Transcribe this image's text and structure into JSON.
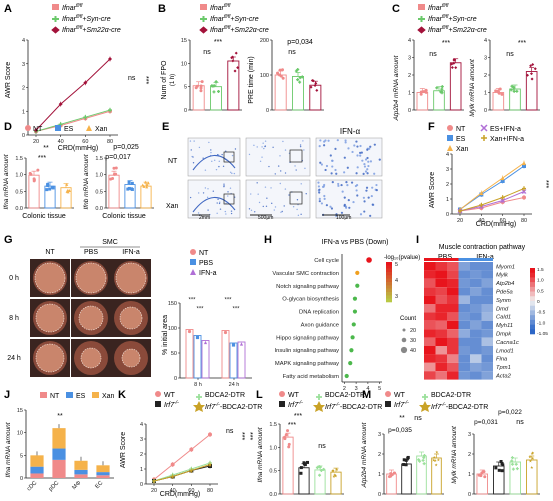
{
  "colors": {
    "pink": "#f08a8a",
    "green": "#6bc96b",
    "darkred": "#a3123a",
    "orange": "#f5b24a",
    "blue": "#4a90e2",
    "purple": "#b06fd6",
    "black": "#222222",
    "gold": "#c9a227",
    "lightgreen": "#9be09b",
    "heat_high": "#e8141c",
    "heat_low": "#2c66c7",
    "heat_mid": "#f2f2f2"
  },
  "panels": {
    "A": {
      "label": "A",
      "legend": [
        "Ifnar",
        "Ifnar",
        "Ifnar"
      ],
      "legend_sup": [
        "fl/fl",
        "fl/fl",
        "fl/fl"
      ],
      "legend_suffix": [
        "",
        "+Syn-cre",
        "+Sm22α-cre"
      ],
      "ylabel": "AWR Score",
      "xlabel": "CRD(mmHg)",
      "xticks": [
        "20",
        "40",
        "60",
        "80"
      ],
      "yticks": [
        "0",
        "1",
        "2",
        "3",
        "4"
      ],
      "ns": "ns",
      "stars": "***",
      "chart_data": {
        "type": "line",
        "x": [
          20,
          40,
          60,
          80
        ],
        "ylim": [
          0,
          4
        ],
        "series": [
          {
            "values": [
              0.15,
              0.4,
              0.7,
              1.0
            ]
          },
          {
            "values": [
              0.15,
              0.45,
              0.75,
              1.05
            ]
          },
          {
            "values": [
              0.2,
              1.3,
              2.2,
              3.2
            ]
          }
        ]
      }
    },
    "B": {
      "label": "B",
      "ylabel1": "Num of FPO",
      "ylabel1b": "(1 h)",
      "ylabel2": "PRE time (min)",
      "stars": "***",
      "ns": "ns",
      "p": "p=0,034",
      "yticks1": [
        "0",
        "5",
        "10",
        "15"
      ],
      "yticks2": [
        "0",
        "100",
        "200"
      ],
      "chart_data": {
        "type": "bar",
        "panels": [
          {
            "ylim": [
              0,
              15
            ],
            "values": [
              5.2,
              5.0,
              10.5
            ]
          },
          {
            "ylim": [
              0,
              240
            ],
            "values": [
              120,
              115,
              85
            ]
          }
        ]
      }
    },
    "C": {
      "label": "C",
      "ylabel1": "Atp2b4 mRNA amount",
      "ylabel2": "Mylk mRNA amount",
      "stars1": "***",
      "ns1": "ns",
      "stars2": "***",
      "ns2": "ns",
      "yticks1": [
        "0",
        "1",
        "2",
        "3",
        "4"
      ],
      "yticks2": [
        "0",
        "1",
        "2",
        "3",
        "4"
      ],
      "chart_data": {
        "type": "bar",
        "panels": [
          {
            "ylim": [
              0,
              4
            ],
            "values": [
              1.0,
              1.1,
              2.7
            ]
          },
          {
            "ylim": [
              0,
              4
            ],
            "values": [
              1.0,
              1.2,
              2.2
            ]
          }
        ]
      }
    },
    "D": {
      "label": "D",
      "legend": [
        "NT",
        "ES",
        "Xan"
      ],
      "ylabel1": "Ifna mRNA amount",
      "ylabel2": "Ifnb mRNA amount",
      "xlabel": "Colonic tissue",
      "stars_a": "**",
      "stars_b": "***",
      "p1": "p=0,025",
      "p2": "p=0,017",
      "yticks1": [
        "0.0",
        "0.5",
        "1.0",
        "1.5"
      ],
      "yticks2": [
        "0.0",
        "0.5",
        "1.0",
        "1.5"
      ],
      "chart_data": {
        "type": "bar",
        "categories": [
          "NT",
          "ES",
          "Xan"
        ],
        "panels": [
          {
            "ylim": [
              0,
              1.6
            ],
            "values": [
              1.05,
              0.7,
              0.65
            ]
          },
          {
            "ylim": [
              0,
              1.6
            ],
            "values": [
              1.05,
              0.75,
              0.7
            ]
          }
        ]
      }
    },
    "E": {
      "label": "E",
      "col_title": "IFN-α",
      "rows": [
        "NT",
        "Xan"
      ],
      "scale1": "2mm",
      "scale2": "500μm",
      "scale3": "100μm"
    },
    "F": {
      "label": "F",
      "legend": [
        "NT",
        "ES",
        "Xan",
        "ES+IFN-a",
        "Xan+IFN-a"
      ],
      "ylabel": "AWR Score",
      "xlabel": "CRD(mmHg)",
      "stars": "***",
      "xticks": [
        "20",
        "40",
        "60",
        "80"
      ],
      "yticks": [
        "0",
        "1",
        "2",
        "3",
        "4"
      ],
      "chart_data": {
        "type": "line",
        "x": [
          20,
          40,
          60,
          80
        ],
        "ylim": [
          0,
          4
        ],
        "series": [
          {
            "values": [
              0.2,
              0.4,
              0.8,
              1.1
            ]
          },
          {
            "values": [
              0.3,
              1.3,
              2.2,
              3.2
            ]
          },
          {
            "values": [
              0.3,
              1.4,
              2.4,
              3.4
            ]
          },
          {
            "values": [
              0.2,
              0.5,
              0.9,
              1.5
            ]
          },
          {
            "values": [
              0.2,
              0.6,
              1.1,
              1.7
            ]
          }
        ]
      }
    },
    "G": {
      "label": "G",
      "smc": "SMC",
      "cols": [
        "NT",
        "PBS",
        "IFN-a"
      ],
      "rows": [
        "0 h",
        "8 h",
        "24 h"
      ],
      "legend": [
        "NT",
        "PBS",
        "IFN-a"
      ],
      "ylabel": "% initial area",
      "stars": [
        "***",
        "***",
        "***",
        "***"
      ],
      "xticks": [
        "8 h",
        "24 h"
      ],
      "yticks": [
        "0",
        "50",
        "100",
        "150"
      ],
      "chart_data": {
        "type": "bar",
        "categories": [
          "8 h",
          "24 h"
        ],
        "ylim": [
          0,
          150
        ],
        "series": [
          {
            "name": "NT",
            "values": [
              97,
              95
            ]
          },
          {
            "name": "PBS",
            "values": [
              85,
              70
            ]
          },
          {
            "name": "IFN-a",
            "values": [
              75,
              72
            ]
          }
        ]
      }
    },
    "H": {
      "label": "H",
      "title": "IFN-a vs PBS (Down)",
      "color_title": "-log₁₀(pvalue)",
      "color_ticks": [
        "5",
        "4",
        "3"
      ],
      "size_title": "Count",
      "size_ticks": [
        "20",
        "30",
        "40"
      ],
      "xticks": [
        "2",
        "3",
        "4",
        "5"
      ],
      "chart_data": {
        "type": "scatter",
        "categories": [
          "Cell cycle",
          "Vascular SMC contraction",
          "Notch signaling pathway",
          "O-glycan biosynthesis",
          "DNA replication",
          "Axon guidance",
          "Hippo signaling pathway",
          "Insulin signaling pathway",
          "MAPK signaling pathway",
          "Fatty acid metabolism"
        ],
        "x": [
          4.1,
          3.1,
          3.1,
          2.9,
          2.9,
          2.8,
          2.7,
          2.6,
          2.5,
          2.2
        ],
        "xlim": [
          1.8,
          5.2
        ]
      }
    },
    "I": {
      "label": "I",
      "title": "Muscle contraction pathway",
      "groups": [
        "PBS",
        "IFN-a"
      ],
      "genes": [
        "Myom1",
        "Mylk",
        "Atp2b4",
        "Pde5a",
        "Synm",
        "Dmd",
        "Cald1",
        "Myh11",
        "Dmpk",
        "Cacna1c",
        "Lmod1",
        "Flna",
        "Tpm1",
        "Acta2"
      ],
      "colorbar_ticks": [
        "1.5",
        "1.0",
        "0.5",
        "0",
        "-0.5",
        "-1.0",
        "-1.05"
      ],
      "chart_data": {
        "type": "heatmap",
        "rows": 14,
        "cols": 6,
        "values": [
          [
            1.4,
            1.2,
            1.0,
            -0.8,
            -1.0,
            -1.0
          ],
          [
            1.3,
            1.4,
            1.1,
            -1.0,
            -0.9,
            -1.0
          ],
          [
            1.0,
            1.4,
            1.3,
            -0.9,
            -1.0,
            -0.8
          ],
          [
            1.2,
            1.1,
            1.4,
            -1.0,
            -0.8,
            -1.0
          ],
          [
            1.4,
            1.0,
            1.2,
            -0.6,
            -1.0,
            -1.0
          ],
          [
            0.8,
            1.3,
            1.3,
            -1.0,
            -0.9,
            -0.7
          ],
          [
            1.2,
            1.3,
            1.0,
            -0.9,
            -1.0,
            -0.6
          ],
          [
            1.0,
            0.9,
            1.4,
            -1.0,
            -0.8,
            -1.0
          ],
          [
            1.3,
            1.2,
            0.9,
            -0.7,
            -1.0,
            -0.9
          ],
          [
            0.9,
            1.4,
            1.2,
            -1.0,
            -1.0,
            -0.5
          ],
          [
            1.4,
            0.6,
            1.2,
            -0.9,
            -1.0,
            -0.9
          ],
          [
            1.3,
            1.2,
            0.7,
            -1.0,
            -0.4,
            -1.0
          ],
          [
            0.6,
            1.3,
            1.0,
            -1.0,
            -0.8,
            -0.9
          ],
          [
            1.1,
            0.8,
            1.3,
            -0.9,
            -1.0,
            -0.8
          ]
        ]
      }
    },
    "J": {
      "label": "J",
      "legend": [
        "NT",
        "ES",
        "Xan"
      ],
      "ylabel": "Ifna mRNA amount",
      "stars": "**",
      "yticks": [
        "0",
        "5",
        "10",
        "15"
      ],
      "chart_data": {
        "type": "bar",
        "categories": [
          "cDC",
          "pDC",
          "MΦ",
          "EC"
        ],
        "ylim": [
          0,
          15
        ],
        "stacked": true,
        "series": [
          {
            "name": "NT",
            "values": [
              1.0,
              4.0,
              0.8,
              0.6
            ]
          },
          {
            "name": "ES",
            "values": [
              1.5,
              2.5,
              1.0,
              0.7
            ]
          },
          {
            "name": "Xan",
            "values": [
              2.5,
              4.5,
              2.0,
              1.5
            ]
          }
        ]
      }
    },
    "K": {
      "label": "K",
      "legend": [
        "WT",
        "Irf7",
        "BDCA2-DTR",
        "Irf7",
        "-BDCA2-DTR"
      ],
      "legend_sup": [
        "",
        "-/-",
        "",
        "-/-",
        ""
      ],
      "ylabel": "AWR Score",
      "xlabel": "CRD(mmHg)",
      "ns": "ns",
      "stars": "***",
      "stars2": "***",
      "xticks": [
        "20",
        "40",
        "60",
        "80"
      ],
      "yticks": [
        "0",
        "1",
        "2",
        "3",
        "4"
      ],
      "chart_data": {
        "type": "line",
        "x": [
          20,
          40,
          60,
          80
        ],
        "ylim": [
          0,
          4
        ],
        "series": [
          {
            "values": [
              0.3,
              1.3,
              2.3,
              3.3
            ]
          },
          {
            "values": [
              0.2,
              0.5,
              0.9,
              1.2
            ]
          },
          {
            "values": [
              0.2,
              0.6,
              1.0,
              1.4
            ]
          },
          {
            "values": [
              0.2,
              0.5,
              0.9,
              1.3
            ]
          }
        ]
      }
    },
    "L": {
      "label": "L",
      "legend": [
        "WT",
        "Irf7",
        "BDCA2-DTR",
        "Irf7",
        "-BDCA2-DTR"
      ],
      "legend_sup": [
        "",
        "-/-",
        "",
        "-/-",
        ""
      ],
      "ylabel": "Ifna mRNA amount",
      "stars1": "***",
      "stars2": "***",
      "ns": "ns",
      "yticks": [
        "0.0",
        "0.5",
        "1.0",
        "1.5"
      ],
      "chart_data": {
        "type": "bar",
        "ylim": [
          0,
          1.6
        ],
        "values": [
          1.3,
          0.6,
          0.55,
          0.5
        ]
      }
    },
    "M": {
      "label": "M",
      "legend": [
        "WT",
        "Irf7",
        "BDCA2-DTR",
        "Irf7",
        "-BDCA2-DTR"
      ],
      "legend_sup": [
        "",
        "-/-",
        "",
        "-/-",
        ""
      ],
      "ylabel1": "Atp2b4 mRNA amount",
      "ylabel2": "Mylk mRNA amount",
      "stars": "**",
      "ns1": "ns",
      "p1": "p=0,035",
      "ns2": "ns",
      "p2": "p=0,031",
      "p3": "p=0,022",
      "yticks1": [
        "0",
        "1",
        "2",
        "3"
      ],
      "yticks2": [
        "0",
        "1",
        "2",
        "3"
      ],
      "chart_data": {
        "type": "bar",
        "panels": [
          {
            "ylim": [
              0,
              3
            ],
            "values": [
              1.0,
              1.5,
              1.9,
              1.8
            ]
          },
          {
            "ylim": [
              0,
              3
            ],
            "values": [
              1.0,
              1.4,
              1.6,
              1.7
            ]
          }
        ]
      }
    }
  }
}
